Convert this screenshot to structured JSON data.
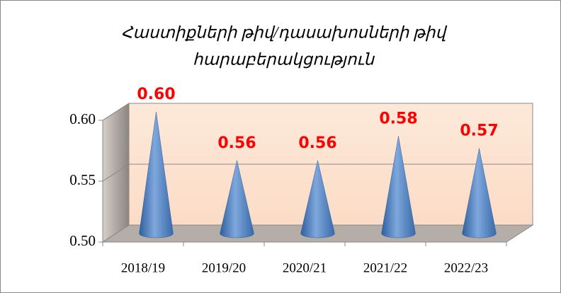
{
  "chart_data": {
    "type": "cone",
    "title": [
      "Հաստիքների թիվ/դասախոսների թիվ",
      "հարաբերակցություն"
    ],
    "categories": [
      "2018/19",
      "2019/20",
      "2020/21",
      "2021/22",
      "2022/23"
    ],
    "values": [
      0.6,
      0.56,
      0.56,
      0.58,
      0.57
    ],
    "value_labels": [
      "0.60",
      "0.56",
      "0.56",
      "0.58",
      "0.57"
    ],
    "color": "#4f81bd",
    "ylim": [
      0.5,
      0.6
    ],
    "yticks": [
      {
        "value": 0.5,
        "label": "0.50"
      },
      0.55,
      {
        "value": 0.6,
        "label": "0.60"
      }
    ],
    "grid": true
  }
}
